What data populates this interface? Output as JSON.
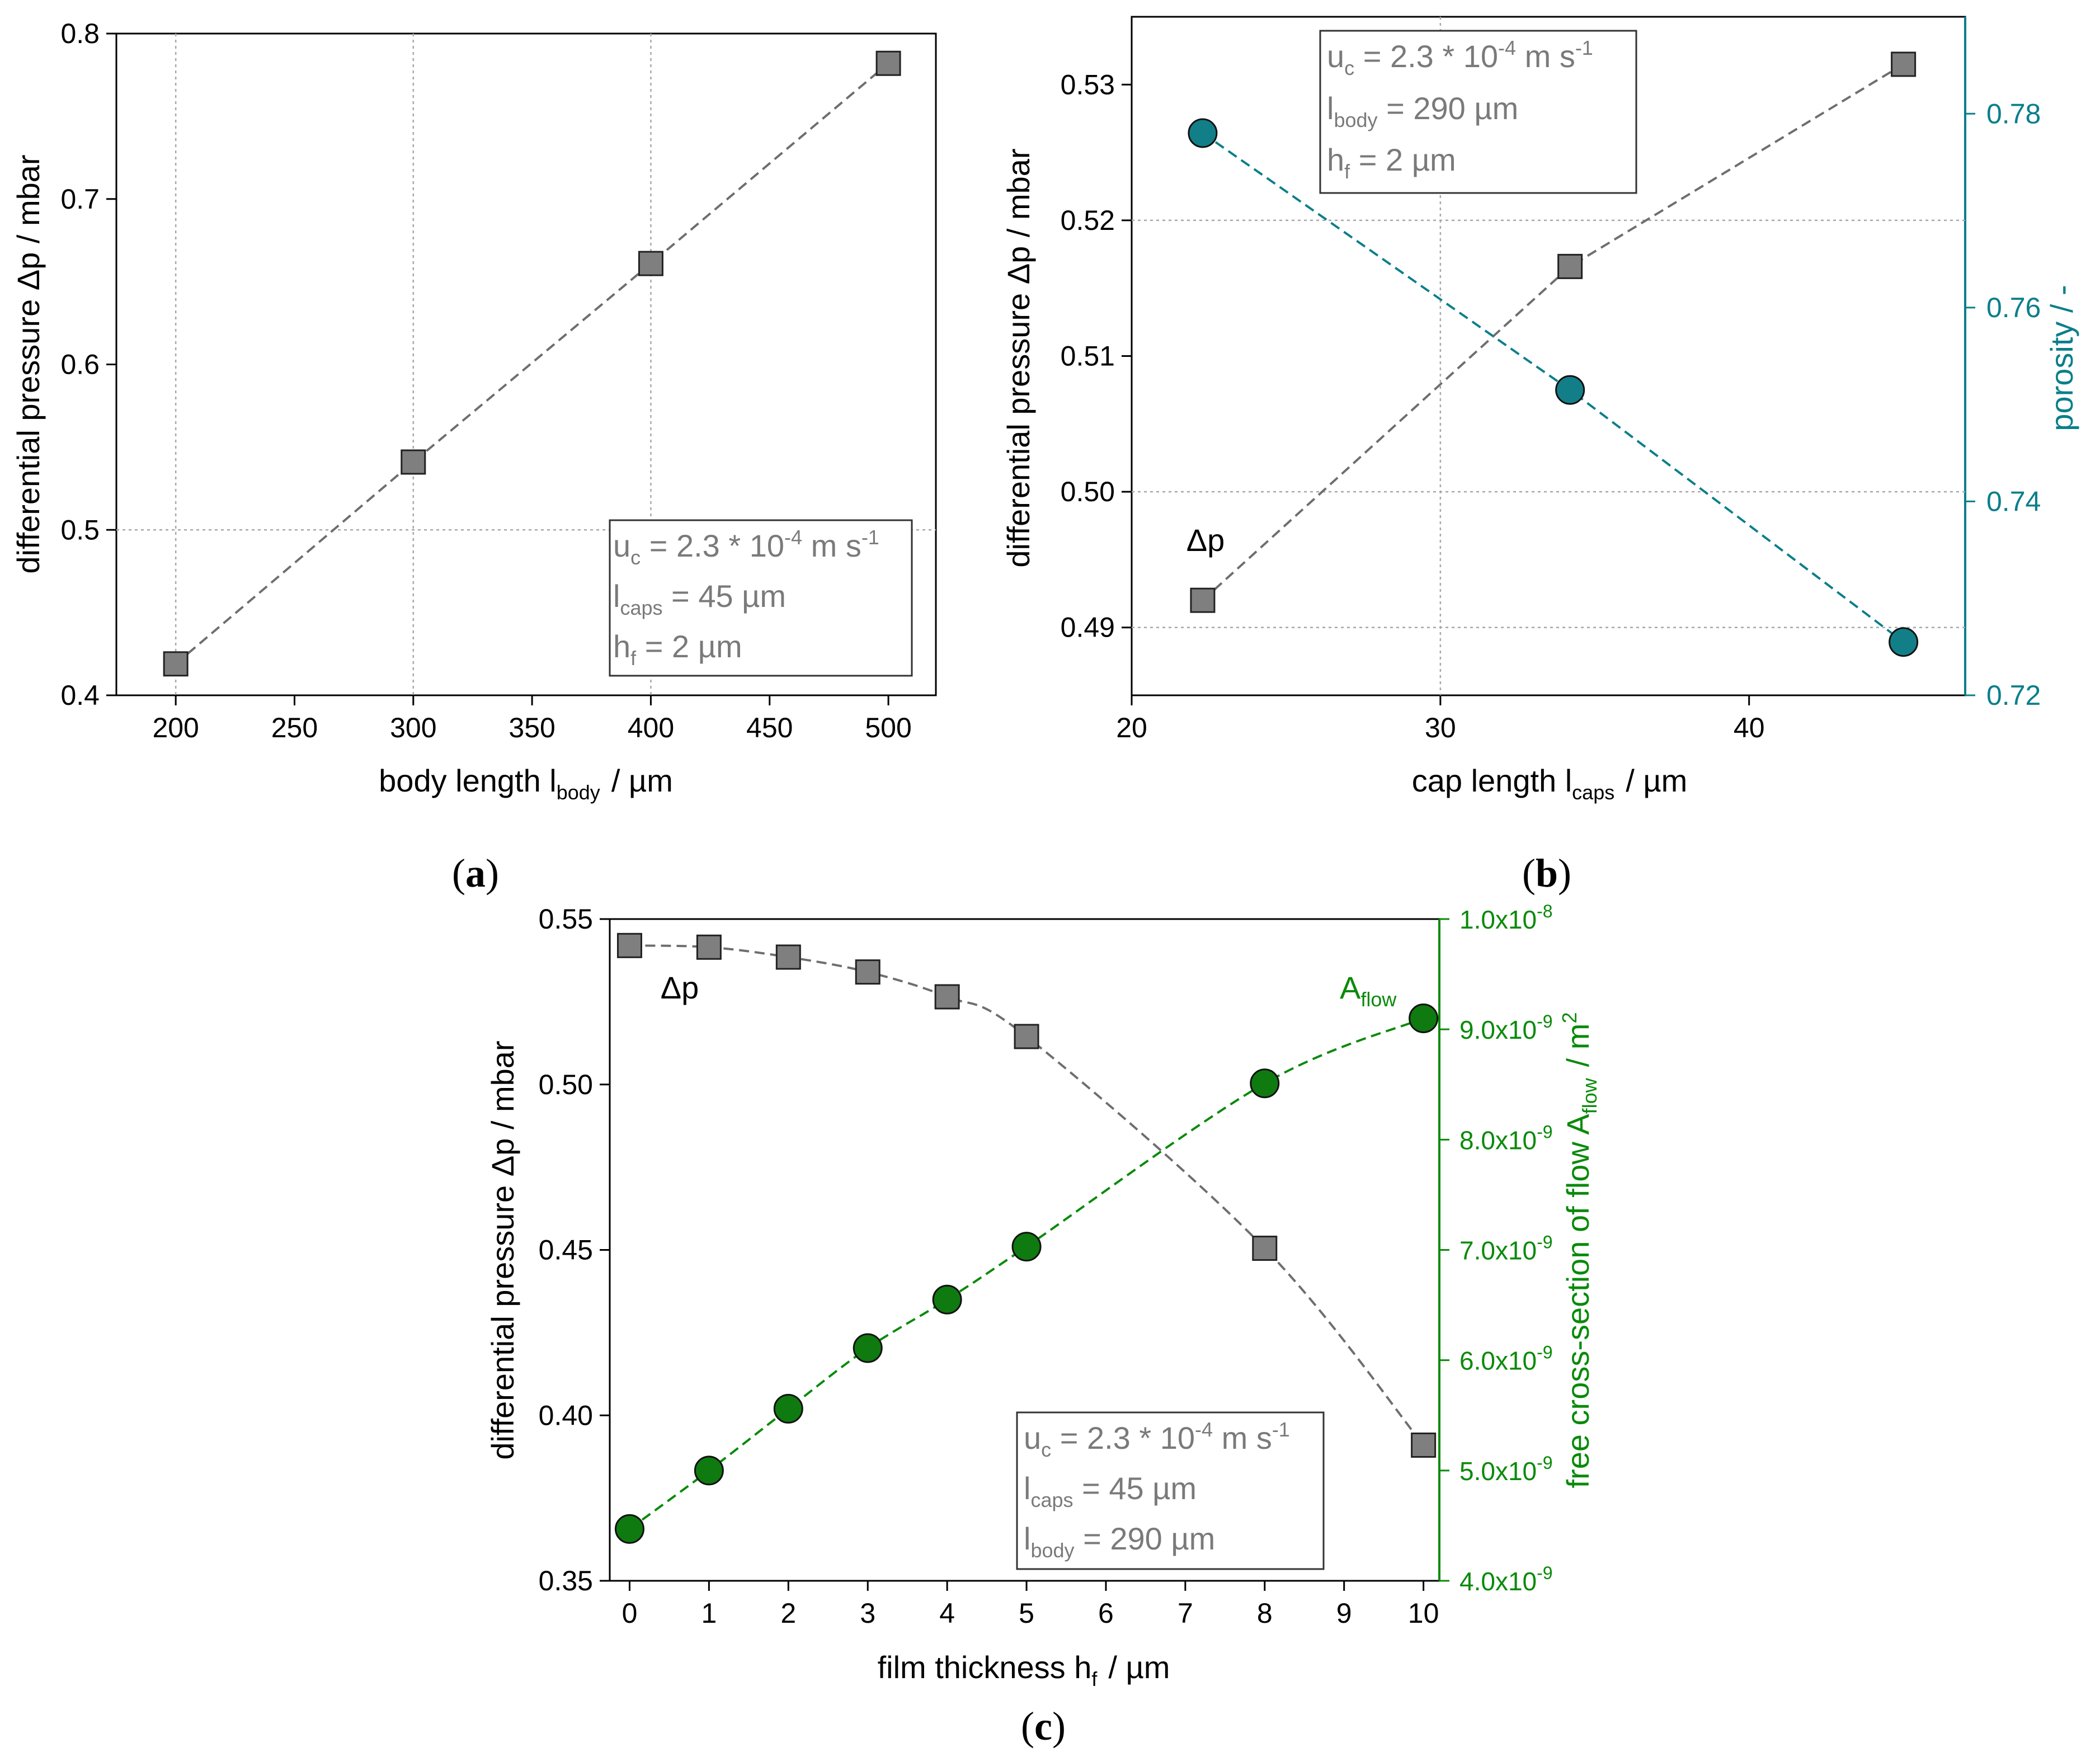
{
  "colors": {
    "grey": "#6e6e6e",
    "teal": "#0a7f8a",
    "green": "#0a8a0a",
    "marker_grey": "#7f7f7f",
    "teal_fill": "#127f88",
    "green_fill": "#0f7a0f"
  },
  "chart_data": [
    {
      "type": "scatter",
      "panel_label": "(a)",
      "xlabel": {
        "main": "body length l",
        "sub": "body",
        "unit": "/ µm"
      },
      "ylabel": "differential pressure Δp / mbar",
      "xlim": [
        175,
        520
      ],
      "ylim": [
        0.4,
        0.8
      ],
      "xticks": [
        "200",
        "250",
        "300",
        "350",
        "400",
        "450",
        "500"
      ],
      "yticks": [
        "0.4",
        "0.5",
        "0.6",
        "0.7",
        "0.8"
      ],
      "series": [
        {
          "name": "Δp",
          "x": [
            200,
            300,
            400,
            500
          ],
          "y": [
            0.419,
            0.541,
            0.661,
            0.782
          ]
        }
      ],
      "legend": {
        "line1": {
          "pre": "u",
          "sub": "c",
          "mid": " = 2.3 * 10",
          "sup": "-4",
          "post": " m s",
          "sup2": "-1"
        },
        "line2": {
          "pre": "l",
          "sub": "caps",
          "post": " = 45 µm"
        },
        "line3": {
          "pre": "h",
          "sub": "f",
          "post": " = 2 µm"
        }
      }
    },
    {
      "type": "scatter",
      "panel_label": "(b)",
      "xlabel": {
        "main": "cap length l",
        "sub": "caps",
        "unit": "/ µm"
      },
      "ylabel": "differential pressure Δp / mbar",
      "y2label": "porosity / -",
      "xlim": [
        20,
        47
      ],
      "ylim": [
        0.485,
        0.535
      ],
      "y2lim": [
        0.72,
        0.79
      ],
      "xticks": [
        "20",
        "30",
        "40"
      ],
      "yticks": [
        "0.49",
        "0.50",
        "0.51",
        "0.52",
        "0.53"
      ],
      "y2ticks": [
        "0.72",
        "0.74",
        "0.76",
        "0.78"
      ],
      "series": [
        {
          "name": "Δp",
          "axis": "left",
          "x": [
            22.3,
            34.2,
            45.0
          ],
          "y": [
            0.492,
            0.5166,
            0.5315
          ]
        },
        {
          "name": "porosity",
          "axis": "right",
          "x": [
            22.3,
            34.2,
            45.0
          ],
          "y": [
            0.778,
            0.7515,
            0.7255
          ]
        }
      ],
      "annotation": "Δp",
      "legend": {
        "line1": {
          "pre": "u",
          "sub": "c",
          "mid": " = 2.3 * 10",
          "sup": "-4",
          "post": " m s",
          "sup2": "-1"
        },
        "line2": {
          "pre": "l",
          "sub": "body",
          "post": " = 290 µm"
        },
        "line3": {
          "pre": "h",
          "sub": "f",
          "post": " = 2 µm"
        }
      }
    },
    {
      "type": "scatter",
      "panel_label": "(c)",
      "xlabel": {
        "main": "film thickness h",
        "sub": "f",
        "unit": "/ µm"
      },
      "ylabel": "differential pressure Δp / mbar",
      "y2label": {
        "main": "free cross-section of flow A",
        "sub": "flow",
        "unit": "/ m",
        "sup": "2"
      },
      "xlim": [
        -0.25,
        10.2
      ],
      "ylim": [
        0.35,
        0.55
      ],
      "y2lim": [
        4e-09,
        1e-08
      ],
      "xticks": [
        "0",
        "1",
        "2",
        "3",
        "4",
        "5",
        "6",
        "7",
        "8",
        "9",
        "10"
      ],
      "yticks": [
        "0.35",
        "0.40",
        "0.45",
        "0.50",
        "0.55"
      ],
      "y2ticks": [
        {
          "m": "4.0x10",
          "e": "-9"
        },
        {
          "m": "5.0x10",
          "e": "-9"
        },
        {
          "m": "6.0x10",
          "e": "-9"
        },
        {
          "m": "7.0x10",
          "e": "-9"
        },
        {
          "m": "8.0x10",
          "e": "-9"
        },
        {
          "m": "9.0x10",
          "e": "-9"
        },
        {
          "m": "1.0x10",
          "e": "-8"
        }
      ],
      "series": [
        {
          "name": "Δp",
          "axis": "left",
          "x": [
            0,
            1,
            2,
            3,
            4,
            5,
            8,
            10
          ],
          "y": [
            0.542,
            0.5415,
            0.5385,
            0.534,
            0.5265,
            0.5145,
            0.4505,
            0.391
          ]
        },
        {
          "name": "A_flow",
          "axis": "right",
          "x": [
            0,
            1,
            2,
            3,
            4,
            5,
            8,
            10
          ],
          "y": [
            4.47e-09,
            5e-09,
            5.56e-09,
            6.11e-09,
            6.55e-09,
            7.03e-09,
            8.51e-09,
            9.1e-09
          ]
        }
      ],
      "annotations": {
        "dp": "Δp",
        "aflow": {
          "main": "A",
          "sub": "flow"
        }
      },
      "legend": {
        "line1": {
          "pre": "u",
          "sub": "c",
          "mid": " = 2.3 * 10",
          "sup": "-4",
          "post": " m s",
          "sup2": "-1"
        },
        "line2": {
          "pre": "l",
          "sub": "caps",
          "post": " = 45 µm"
        },
        "line3": {
          "pre": "l",
          "sub": "body",
          "post": " = 290 µm"
        }
      }
    }
  ]
}
